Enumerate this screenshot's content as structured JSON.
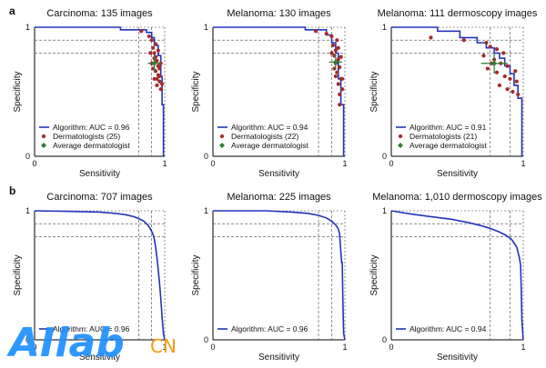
{
  "figure": {
    "rows": [
      {
        "letter": "a"
      },
      {
        "letter": "b"
      }
    ]
  },
  "watermark": {
    "text_main": "AIlab",
    "text_suffix": "CN"
  },
  "colors": {
    "curve": "#2233bb",
    "derm": "#a52a2a",
    "avg": "#2e7d32",
    "axis": "#000000",
    "guide": "#444444"
  },
  "chart_data": [
    {
      "type": "line",
      "title": "Carcinoma: 135 images",
      "xlabel": "Sensitivity",
      "ylabel": "Specificity",
      "xlim": [
        0,
        1
      ],
      "ylim": [
        0,
        1
      ],
      "x_ticks": [
        "0",
        "1"
      ],
      "y_ticks": [
        "0",
        "1"
      ],
      "legend_position": "bottom-left",
      "legend": [
        "Algorithm: AUC = 0.96",
        "Dermatologists (25)",
        "Average dermatologist"
      ],
      "guides": {
        "x": [
          0.8,
          0.9
        ],
        "y": [
          0.9,
          0.8
        ]
      },
      "series": [
        {
          "name": "Algorithm: AUC = 0.96",
          "points": [
            [
              0,
              1
            ],
            [
              0.66,
              1
            ],
            [
              0.66,
              0.98
            ],
            [
              0.86,
              0.98
            ],
            [
              0.86,
              0.96
            ],
            [
              0.9,
              0.96
            ],
            [
              0.9,
              0.92
            ],
            [
              0.92,
              0.92
            ],
            [
              0.92,
              0.86
            ],
            [
              0.95,
              0.86
            ],
            [
              0.95,
              0.78
            ],
            [
              0.97,
              0.78
            ],
            [
              0.97,
              0.62
            ],
            [
              0.98,
              0.62
            ],
            [
              0.98,
              0.4
            ],
            [
              0.99,
              0.4
            ],
            [
              0.99,
              0
            ]
          ]
        }
      ],
      "dermatologists": [
        [
          0.82,
          0.97
        ],
        [
          0.88,
          0.93
        ],
        [
          0.9,
          0.9
        ],
        [
          0.91,
          0.84
        ],
        [
          0.92,
          0.8
        ],
        [
          0.93,
          0.77
        ],
        [
          0.94,
          0.74
        ],
        [
          0.95,
          0.7
        ],
        [
          0.93,
          0.66
        ],
        [
          0.95,
          0.63
        ],
        [
          0.92,
          0.6
        ],
        [
          0.96,
          0.58
        ],
        [
          0.94,
          0.55
        ],
        [
          0.97,
          0.52
        ],
        [
          0.9,
          0.72
        ],
        [
          0.89,
          0.8
        ],
        [
          0.96,
          0.68
        ],
        [
          0.93,
          0.87
        ],
        [
          0.95,
          0.82
        ],
        [
          0.97,
          0.72
        ],
        [
          0.91,
          0.68
        ],
        [
          0.96,
          0.62
        ],
        [
          0.94,
          0.6
        ],
        [
          0.98,
          0.56
        ],
        [
          0.92,
          0.76
        ]
      ],
      "average": {
        "x": 0.92,
        "y": 0.72,
        "x_err": 0.05,
        "y_err": 0.07
      }
    },
    {
      "type": "line",
      "title": "Melanoma: 130 images",
      "xlabel": "Sensitivity",
      "ylabel": "Specificity",
      "xlim": [
        0,
        1
      ],
      "ylim": [
        0,
        1
      ],
      "x_ticks": [
        "0",
        "1"
      ],
      "y_ticks": [
        "0",
        "1"
      ],
      "legend_position": "bottom-left",
      "legend": [
        "Algorithm: AUC = 0.94",
        "Dermatologists (22)",
        "Average dermatologist"
      ],
      "guides": {
        "x": [
          0.8,
          0.9
        ],
        "y": [
          0.9,
          0.8
        ]
      },
      "series": [
        {
          "name": "Algorithm: AUC = 0.94",
          "points": [
            [
              0,
              1
            ],
            [
              0.7,
              1
            ],
            [
              0.7,
              0.98
            ],
            [
              0.86,
              0.98
            ],
            [
              0.86,
              0.94
            ],
            [
              0.9,
              0.94
            ],
            [
              0.9,
              0.88
            ],
            [
              0.93,
              0.88
            ],
            [
              0.93,
              0.8
            ],
            [
              0.95,
              0.8
            ],
            [
              0.95,
              0.6
            ],
            [
              0.97,
              0.6
            ],
            [
              0.97,
              0.4
            ],
            [
              0.99,
              0.4
            ],
            [
              0.99,
              0
            ]
          ]
        }
      ],
      "dermatologists": [
        [
          0.78,
          0.97
        ],
        [
          0.86,
          0.95
        ],
        [
          0.9,
          0.93
        ],
        [
          0.91,
          0.86
        ],
        [
          0.93,
          0.82
        ],
        [
          0.92,
          0.78
        ],
        [
          0.95,
          0.75
        ],
        [
          0.93,
          0.72
        ],
        [
          0.96,
          0.69
        ],
        [
          0.94,
          0.65
        ],
        [
          0.97,
          0.6
        ],
        [
          0.95,
          0.56
        ],
        [
          0.98,
          0.52
        ],
        [
          0.96,
          0.48
        ],
        [
          0.94,
          0.9
        ],
        [
          0.92,
          0.68
        ],
        [
          0.97,
          0.77
        ],
        [
          0.9,
          0.8
        ],
        [
          0.95,
          0.84
        ],
        [
          0.98,
          0.6
        ],
        [
          0.96,
          0.4
        ],
        [
          0.93,
          0.62
        ]
      ],
      "average": {
        "x": 0.93,
        "y": 0.73,
        "x_err": 0.05,
        "y_err": 0.06
      }
    },
    {
      "type": "line",
      "title": "Melanoma: 111 dermoscopy images",
      "xlabel": "Sensitivity",
      "ylabel": "Specificity",
      "xlim": [
        0,
        1
      ],
      "ylim": [
        0,
        1
      ],
      "x_ticks": [
        "0",
        "1"
      ],
      "y_ticks": [
        "0",
        "1"
      ],
      "legend_position": "bottom-left",
      "legend": [
        "Algorithm: AUC = 0.91",
        "Dermatologists (21)",
        "Average dermatologist"
      ],
      "guides": {
        "x": [
          0.75,
          0.9
        ],
        "y": [
          0.9,
          0.8
        ]
      },
      "series": [
        {
          "name": "Algorithm: AUC = 0.91",
          "points": [
            [
              0,
              1
            ],
            [
              0.35,
              1
            ],
            [
              0.35,
              0.97
            ],
            [
              0.52,
              0.97
            ],
            [
              0.52,
              0.92
            ],
            [
              0.65,
              0.92
            ],
            [
              0.65,
              0.88
            ],
            [
              0.72,
              0.88
            ],
            [
              0.72,
              0.84
            ],
            [
              0.78,
              0.84
            ],
            [
              0.78,
              0.8
            ],
            [
              0.82,
              0.8
            ],
            [
              0.82,
              0.76
            ],
            [
              0.86,
              0.76
            ],
            [
              0.86,
              0.7
            ],
            [
              0.9,
              0.7
            ],
            [
              0.9,
              0.64
            ],
            [
              0.93,
              0.64
            ],
            [
              0.93,
              0.55
            ],
            [
              0.96,
              0.55
            ],
            [
              0.96,
              0.45
            ],
            [
              0.99,
              0.45
            ],
            [
              0.99,
              0
            ]
          ]
        }
      ],
      "dermatologists": [
        [
          0.3,
          0.92
        ],
        [
          0.55,
          0.9
        ],
        [
          0.72,
          0.88
        ],
        [
          0.75,
          0.85
        ],
        [
          0.8,
          0.83
        ],
        [
          0.85,
          0.8
        ],
        [
          0.7,
          0.78
        ],
        [
          0.78,
          0.75
        ],
        [
          0.83,
          0.72
        ],
        [
          0.88,
          0.7
        ],
        [
          0.73,
          0.68
        ],
        [
          0.8,
          0.65
        ],
        [
          0.86,
          0.62
        ],
        [
          0.9,
          0.6
        ],
        [
          0.95,
          0.58
        ],
        [
          0.82,
          0.55
        ],
        [
          0.88,
          0.52
        ],
        [
          0.92,
          0.5
        ],
        [
          0.96,
          0.48
        ],
        [
          0.76,
          0.72
        ],
        [
          0.94,
          0.66
        ]
      ],
      "average": {
        "x": 0.78,
        "y": 0.72,
        "x_err": 0.1,
        "y_err": 0.08
      }
    },
    {
      "type": "line",
      "title": "Carcinoma: 707 images",
      "xlabel": "Sensitivity",
      "ylabel": "Specificity",
      "xlim": [
        0,
        1
      ],
      "ylim": [
        0,
        1
      ],
      "x_ticks": [
        "0",
        "1"
      ],
      "y_ticks": [
        "0",
        "1"
      ],
      "legend_position": "bottom-left",
      "legend": [
        "Algorithm: AUC = 0.96"
      ],
      "guides": {
        "x": [
          0.8,
          0.9
        ],
        "y": [
          0.9,
          0.8
        ]
      },
      "series": [
        {
          "name": "Algorithm: AUC = 0.96",
          "points": [
            [
              0,
              1
            ],
            [
              0.3,
              0.995
            ],
            [
              0.5,
              0.99
            ],
            [
              0.62,
              0.98
            ],
            [
              0.7,
              0.97
            ],
            [
              0.76,
              0.955
            ],
            [
              0.8,
              0.94
            ],
            [
              0.84,
              0.92
            ],
            [
              0.87,
              0.89
            ],
            [
              0.89,
              0.86
            ],
            [
              0.91,
              0.82
            ],
            [
              0.92,
              0.78
            ],
            [
              0.93,
              0.72
            ],
            [
              0.94,
              0.64
            ],
            [
              0.95,
              0.55
            ],
            [
              0.96,
              0.44
            ],
            [
              0.97,
              0.32
            ],
            [
              0.98,
              0.18
            ],
            [
              0.99,
              0.05
            ],
            [
              1,
              0
            ]
          ]
        }
      ]
    },
    {
      "type": "line",
      "title": "Melanoma: 225 images",
      "xlabel": "Sensitivity",
      "ylabel": "Specificity",
      "xlim": [
        0,
        1
      ],
      "ylim": [
        0,
        1
      ],
      "x_ticks": [
        "0",
        "1"
      ],
      "y_ticks": [
        "0",
        "1"
      ],
      "legend_position": "bottom-left",
      "legend": [
        "Algorithm: AUC = 0.96"
      ],
      "guides": {
        "x": [
          0.8,
          0.9
        ],
        "y": [
          0.9,
          0.8
        ]
      },
      "series": [
        {
          "name": "Algorithm: AUC = 0.96",
          "points": [
            [
              0,
              1
            ],
            [
              0.4,
              1
            ],
            [
              0.6,
              0.99
            ],
            [
              0.72,
              0.98
            ],
            [
              0.8,
              0.965
            ],
            [
              0.86,
              0.945
            ],
            [
              0.9,
              0.92
            ],
            [
              0.93,
              0.89
            ],
            [
              0.95,
              0.86
            ],
            [
              0.96,
              0.82
            ],
            [
              0.965,
              0.75
            ],
            [
              0.97,
              0.68
            ],
            [
              0.975,
              0.6
            ],
            [
              0.98,
              0.6
            ],
            [
              0.985,
              0.3
            ],
            [
              0.99,
              0.05
            ],
            [
              1,
              0
            ]
          ]
        }
      ]
    },
    {
      "type": "line",
      "title": "Melanoma: 1,010 dermoscopy images",
      "xlabel": "Sensitivity",
      "ylabel": "Specificity",
      "xlim": [
        0,
        1
      ],
      "ylim": [
        0,
        1
      ],
      "x_ticks": [
        "0",
        "1"
      ],
      "y_ticks": [
        "0",
        "1"
      ],
      "legend_position": "bottom-left",
      "legend": [
        "Algorithm: AUC = 0.94"
      ],
      "guides": {
        "x": [
          0.75,
          0.9
        ],
        "y": [
          0.9,
          0.8
        ]
      },
      "series": [
        {
          "name": "Algorithm: AUC = 0.94",
          "points": [
            [
              0,
              1
            ],
            [
              0.15,
              0.975
            ],
            [
              0.3,
              0.955
            ],
            [
              0.45,
              0.935
            ],
            [
              0.58,
              0.91
            ],
            [
              0.68,
              0.885
            ],
            [
              0.76,
              0.86
            ],
            [
              0.82,
              0.835
            ],
            [
              0.87,
              0.81
            ],
            [
              0.91,
              0.78
            ],
            [
              0.93,
              0.75
            ],
            [
              0.95,
              0.72
            ],
            [
              0.96,
              0.68
            ],
            [
              0.97,
              0.64
            ],
            [
              0.98,
              0.58
            ],
            [
              0.985,
              0.4
            ],
            [
              0.99,
              0.15
            ],
            [
              1,
              0
            ]
          ]
        }
      ]
    }
  ]
}
